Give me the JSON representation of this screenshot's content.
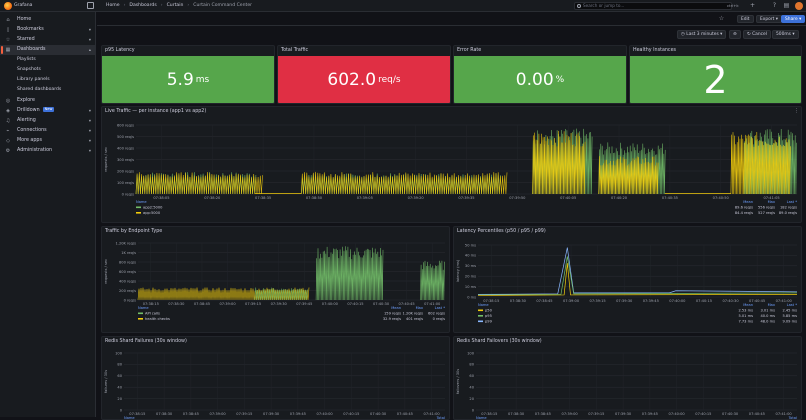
{
  "app": {
    "brand": "Grafana"
  },
  "breadcrumbs": [
    "Home",
    "Dashboards",
    "Curtain",
    "Curtain Command Center"
  ],
  "search": {
    "placeholder": "Search or jump to...",
    "shortcut": "ctrl+k"
  },
  "toolbar": {
    "edit": "Edit",
    "export": "Export",
    "share": "Share"
  },
  "time": {
    "range": "Last 3 minutes",
    "cancel": "Cancel",
    "refresh": "500ms"
  },
  "sidebar": {
    "items": [
      {
        "label": "Home",
        "icon": "home-icon"
      },
      {
        "label": "Bookmarks",
        "icon": "bookmark-icon"
      },
      {
        "label": "Starred",
        "icon": "star-icon"
      },
      {
        "label": "Dashboards",
        "icon": "apps-icon"
      },
      {
        "label": "Playlists"
      },
      {
        "label": "Snapshots"
      },
      {
        "label": "Library panels"
      },
      {
        "label": "Shared dashboards"
      },
      {
        "label": "Explore",
        "icon": "compass-icon"
      },
      {
        "label": "Drilldown",
        "icon": "drilldown-icon",
        "badge": "New"
      },
      {
        "label": "Alerting",
        "icon": "bell-icon"
      },
      {
        "label": "Connections",
        "icon": "plug-icon"
      },
      {
        "label": "More apps",
        "icon": "cube-icon"
      },
      {
        "label": "Administration",
        "icon": "gear-icon"
      }
    ]
  },
  "stats": [
    {
      "title": "p95 Latency",
      "value": "5.9",
      "unit": "ms",
      "color": "#56a64b"
    },
    {
      "title": "Total Traffic",
      "value": "602.0",
      "unit": "req/s",
      "color": "#e02f44"
    },
    {
      "title": "Error Rate",
      "value": "0.00",
      "unit": "%",
      "color": "#56a64b"
    },
    {
      "title": "Healthy Instances",
      "value": "2",
      "unit": "",
      "color": "#56a64b"
    }
  ],
  "panels": {
    "live": {
      "title": "Live Traffic — per instance (app1 vs app2)",
      "ylabel": "requests / sec",
      "yticks": [
        "600 req/s",
        "500 req/s",
        "400 req/s",
        "300 req/s",
        "200 req/s",
        "100 req/s",
        "0 req/s"
      ],
      "xticks": [
        "07:38:05",
        "07:38:20",
        "07:38:35",
        "07:38:50",
        "07:39:05",
        "07:39:20",
        "07:39:35",
        "07:39:50",
        "07:40:05",
        "07:40:20",
        "07:40:35",
        "07:40:50",
        "07:41:05"
      ],
      "legend_head": [
        "Name",
        "Mean",
        "Max",
        "Last *"
      ],
      "legend": [
        {
          "name": "app2:5000",
          "mean": "89.6 req/s",
          "max": "556 req/s",
          "last": "182 req/s",
          "color": "#73bf69"
        },
        {
          "name": "app:5000",
          "mean": "84.4 req/s",
          "max": "527 req/s",
          "last": "89.0 req/s",
          "color": "#f2cc0c"
        }
      ]
    },
    "endpoint": {
      "title": "Traffic by Endpoint Type",
      "ylabel": "requests / sec",
      "yticks": [
        "1.20K req/s",
        "1K req/s",
        "800 req/s",
        "600 req/s",
        "400 req/s",
        "200 req/s",
        "0 req/s"
      ],
      "xticks": [
        "07:38:15",
        "07:38:30",
        "07:38:45",
        "07:39:00",
        "07:39:15",
        "07:39:30",
        "07:39:45",
        "07:40:00",
        "07:40:15",
        "07:40:30",
        "07:40:45",
        "07:41:00"
      ],
      "legend_head": [
        "Name",
        "Mean",
        "Max",
        "Last *"
      ],
      "legend": [
        {
          "name": "API calls",
          "mean": "159 req/s",
          "max": "1.20K req/s",
          "last": "602 req/s",
          "color": "#73bf69"
        },
        {
          "name": "health checks",
          "mean": "32.9 req/s",
          "max": "401 req/s",
          "last": "0 req/s",
          "color": "#f2cc0c"
        }
      ]
    },
    "latency": {
      "title": "Latency Percentiles (p50 / p95 / p99)",
      "ylabel": "latency (ms)",
      "yticks": [
        "50 ms",
        "40 ms",
        "30 ms",
        "20 ms",
        "10 ms",
        "0 ms"
      ],
      "xticks": [
        "07:38:15",
        "07:38:30",
        "07:38:45",
        "07:39:00",
        "07:39:15",
        "07:39:30",
        "07:39:45",
        "07:40:00",
        "07:40:15",
        "07:40:30",
        "07:40:45",
        "07:41:00"
      ],
      "legend_head": [
        "Name",
        "Mean",
        "Max",
        "Last *"
      ],
      "legend": [
        {
          "name": "p50",
          "mean": "2.53 ms",
          "max": "3.01 ms",
          "last": "2.45 ms",
          "color": "#f2cc0c"
        },
        {
          "name": "p95",
          "mean": "5.01 ms",
          "max": "40.0 ms",
          "last": "5.85 ms",
          "color": "#73bf69"
        },
        {
          "name": "p99",
          "mean": "7.73 ms",
          "max": "48.0 ms",
          "last": "9.09 ms",
          "color": "#8ab8ff"
        }
      ]
    },
    "failures": {
      "title": "Redis Shard Failures (30s window)",
      "ylabel": "failures / 30s",
      "yticks": [
        "100",
        "80",
        "60",
        "40",
        "20",
        "0"
      ],
      "xticks": [
        "07:38:15",
        "07:38:30",
        "07:38:45",
        "07:39:00",
        "07:39:15",
        "07:39:30",
        "07:39:45",
        "07:40:00",
        "07:40:15",
        "07:40:30",
        "07:40:45",
        "07:41:00"
      ],
      "legend_head": [
        "Name",
        "Total"
      ]
    },
    "failovers": {
      "title": "Redis Shard Failovers (30s window)",
      "ylabel": "failovers / 30s",
      "yticks": [
        "100",
        "80",
        "60",
        "40",
        "20",
        "0"
      ],
      "xticks": [
        "07:38:15",
        "07:38:30",
        "07:38:45",
        "07:39:00",
        "07:39:15",
        "07:39:30",
        "07:39:45",
        "07:40:00",
        "07:40:15",
        "07:40:30",
        "07:40:45",
        "07:41:00"
      ],
      "legend_head": [
        "Name",
        "Total"
      ]
    }
  }
}
